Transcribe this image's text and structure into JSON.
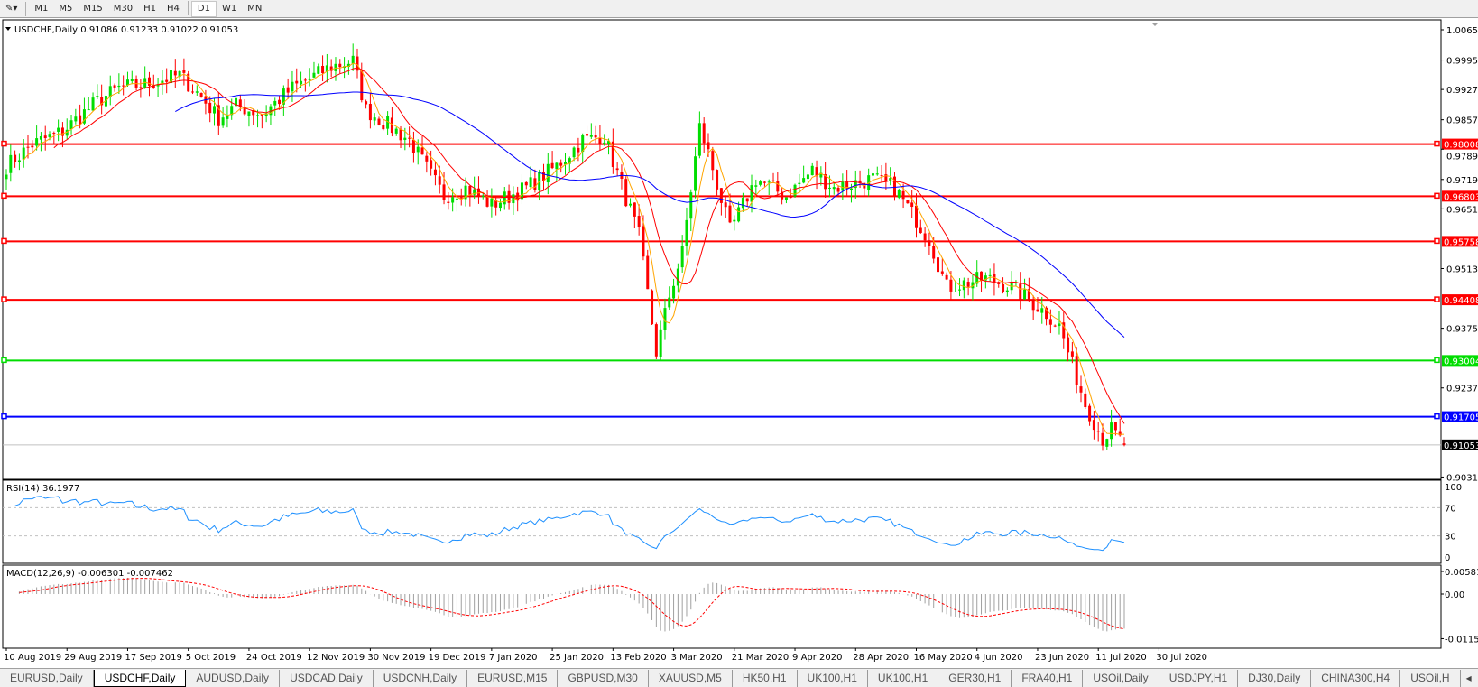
{
  "toolbar": {
    "items": [
      "M1",
      "M5",
      "M15",
      "M30",
      "H1",
      "H4",
      "D1",
      "W1",
      "MN"
    ],
    "active": "D1"
  },
  "chart": {
    "title": "USDCHF,Daily",
    "ohlc": "0.91086 0.91233 0.91022 0.91053",
    "price_ticks": [
      "1.00650",
      "0.99950",
      "0.99270",
      "0.98570",
      "0.97890",
      "0.97190",
      "0.96510",
      "0.95130",
      "0.93750",
      "0.92370",
      "0.90310"
    ],
    "current_price": "0.91053",
    "levels": [
      {
        "price": "0.98008",
        "color": "#ff0000"
      },
      {
        "price": "0.96803",
        "color": "#ff0000"
      },
      {
        "price": "0.95758",
        "color": "#ff0000"
      },
      {
        "price": "0.94408",
        "color": "#ff0000"
      },
      {
        "price": "0.93004",
        "color": "#00dd00"
      },
      {
        "price": "0.91705",
        "color": "#0000ff"
      }
    ],
    "date_labels": [
      "10 Aug 2019",
      "29 Aug 2019",
      "17 Sep 2019",
      "5 Oct 2019",
      "24 Oct 2019",
      "12 Nov 2019",
      "30 Nov 2019",
      "19 Dec 2019",
      "7 Jan 2020",
      "25 Jan 2020",
      "13 Feb 2020",
      "3 Mar 2020",
      "21 Mar 2020",
      "9 Apr 2020",
      "28 Apr 2020",
      "16 May 2020",
      "4 Jun 2020",
      "23 Jun 2020",
      "11 Jul 2020",
      "30 Jul 2020"
    ],
    "rsi": {
      "label": "RSI(14) 36.1977",
      "ticks": [
        "100",
        "70",
        "30",
        "0"
      ]
    },
    "macd": {
      "label": "MACD(12,26,9) -0.006301 -0.007462",
      "ticks": [
        "0.005818",
        "0.00",
        "-0.01151"
      ]
    }
  },
  "chart_data": {
    "type": "candlestick",
    "symbol": "USDCHF",
    "timeframe": "Daily",
    "ylim": [
      0.9031,
      1.0065
    ],
    "colors": {
      "bull": "#00dd00",
      "bear": "#ff0000",
      "ma_fast": "#ffa500",
      "ma_mid": "#ff0000",
      "ma_slow": "#0000ff",
      "rsi": "#1e90ff",
      "macd_signal": "#ff0000",
      "macd_hist": "#a0a0a0"
    },
    "approx_closes": [
      [
        "2019-08-10",
        0.975
      ],
      [
        "2019-08-20",
        0.98
      ],
      [
        "2019-08-29",
        0.983
      ],
      [
        "2019-09-10",
        0.99
      ],
      [
        "2019-09-17",
        0.993
      ],
      [
        "2019-09-25",
        0.994
      ],
      [
        "2019-10-05",
        0.996
      ],
      [
        "2019-10-12",
        0.991
      ],
      [
        "2019-10-18",
        0.986
      ],
      [
        "2019-10-24",
        0.989
      ],
      [
        "2019-11-01",
        0.987
      ],
      [
        "2019-11-12",
        0.993
      ],
      [
        "2019-11-25",
        0.998
      ],
      [
        "2019-11-30",
        0.9993
      ],
      [
        "2019-12-05",
        0.988
      ],
      [
        "2019-12-19",
        0.981
      ],
      [
        "2019-12-31",
        0.968
      ],
      [
        "2020-01-07",
        0.97
      ],
      [
        "2020-01-15",
        0.966
      ],
      [
        "2020-01-25",
        0.97
      ],
      [
        "2020-02-05",
        0.975
      ],
      [
        "2020-02-13",
        0.981
      ],
      [
        "2020-02-20",
        0.982
      ],
      [
        "2020-03-03",
        0.959
      ],
      [
        "2020-03-09",
        0.932
      ],
      [
        "2020-03-12",
        0.945
      ],
      [
        "2020-03-17",
        0.955
      ],
      [
        "2020-03-21",
        0.984
      ],
      [
        "2020-03-25",
        0.978
      ],
      [
        "2020-04-01",
        0.96
      ],
      [
        "2020-04-09",
        0.972
      ],
      [
        "2020-04-20",
        0.968
      ],
      [
        "2020-04-28",
        0.974
      ],
      [
        "2020-05-05",
        0.97
      ],
      [
        "2020-05-16",
        0.972
      ],
      [
        "2020-05-25",
        0.97
      ],
      [
        "2020-06-04",
        0.958
      ],
      [
        "2020-06-10",
        0.947
      ],
      [
        "2020-06-23",
        0.949
      ],
      [
        "2020-07-01",
        0.947
      ],
      [
        "2020-07-11",
        0.941
      ],
      [
        "2020-07-16",
        0.938
      ],
      [
        "2020-07-24",
        0.92
      ],
      [
        "2020-07-30",
        0.912
      ],
      [
        "2020-08-03",
        0.914
      ],
      [
        "2020-08-06",
        0.91053
      ]
    ],
    "rsi_levels": [
      70,
      30
    ],
    "rsi_last": 36.1977,
    "macd_last": -0.006301,
    "signal_last": -0.007462
  }
}
